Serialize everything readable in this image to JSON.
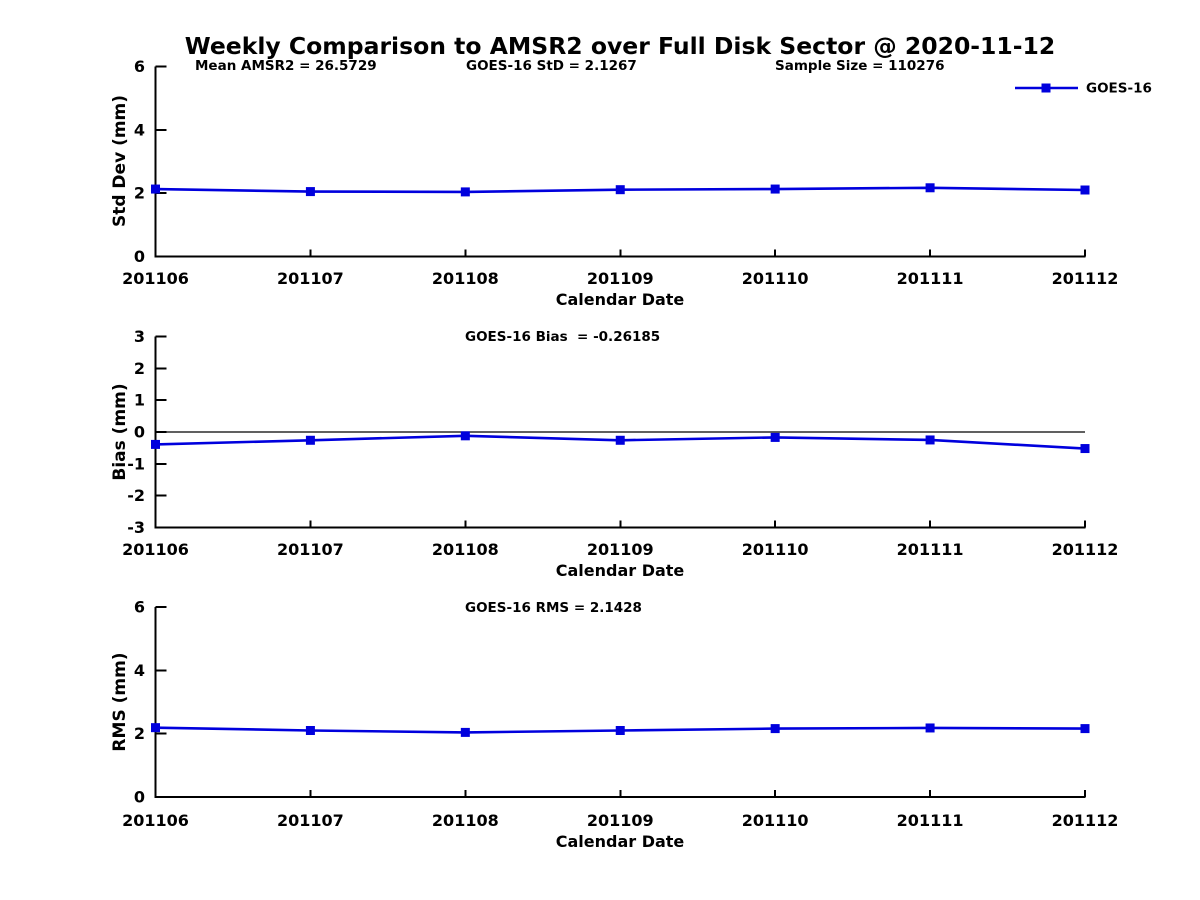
{
  "figure": {
    "title": "Weekly Comparison to AMSR2 over Full Disk Sector @ 2020-11-12",
    "background_color": "#FFFFFF",
    "text_color": "#000000",
    "line_color": "#0000DD",
    "axis_color": "#000000"
  },
  "legend": {
    "label": "GOES-16",
    "marker": "filled-square",
    "position": "top-right"
  },
  "x_axis": {
    "label": "Calendar Date",
    "categories": [
      "201106",
      "201107",
      "201108",
      "201109",
      "201110",
      "201111",
      "201112"
    ]
  },
  "chart_data": [
    {
      "type": "line",
      "name": "std-dev-subplot",
      "ylabel": "Std Dev (mm)",
      "xlabel": "Calendar Date",
      "ylim": [
        0,
        6
      ],
      "yticks": [
        0,
        2,
        4,
        6
      ],
      "grid": false,
      "zero_line": false,
      "categories": [
        "201106",
        "201107",
        "201108",
        "201109",
        "201110",
        "201111",
        "201112"
      ],
      "series": [
        {
          "name": "GOES-16",
          "values": [
            2.13,
            2.05,
            2.04,
            2.11,
            2.13,
            2.17,
            2.1
          ]
        }
      ],
      "annotations": [
        {
          "text": "Mean AMSR2 = 26.5729"
        },
        {
          "text": "GOES-16 StD = 2.1267"
        },
        {
          "text": "Sample Size = 110276"
        }
      ]
    },
    {
      "type": "line",
      "name": "bias-subplot",
      "ylabel": "Bias (mm)",
      "xlabel": "Calendar Date",
      "ylim": [
        -3,
        3
      ],
      "yticks": [
        -3,
        -2,
        -1,
        0,
        1,
        2,
        3
      ],
      "grid": false,
      "zero_line": true,
      "categories": [
        "201106",
        "201107",
        "201108",
        "201109",
        "201110",
        "201111",
        "201112"
      ],
      "series": [
        {
          "name": "GOES-16",
          "values": [
            -0.39,
            -0.26,
            -0.12,
            -0.26,
            -0.17,
            -0.25,
            -0.52
          ]
        }
      ],
      "annotations": [
        {
          "text": "GOES-16 Bias  = -0.26185"
        }
      ]
    },
    {
      "type": "line",
      "name": "rms-subplot",
      "ylabel": "RMS (mm)",
      "xlabel": "Calendar Date",
      "ylim": [
        0,
        6
      ],
      "yticks": [
        0,
        2,
        4,
        6
      ],
      "grid": false,
      "zero_line": false,
      "categories": [
        "201106",
        "201107",
        "201108",
        "201109",
        "201110",
        "201111",
        "201112"
      ],
      "series": [
        {
          "name": "GOES-16",
          "values": [
            2.19,
            2.1,
            2.04,
            2.1,
            2.16,
            2.18,
            2.16
          ]
        }
      ],
      "annotations": [
        {
          "text": "GOES-16 RMS = 2.1428"
        }
      ]
    }
  ]
}
